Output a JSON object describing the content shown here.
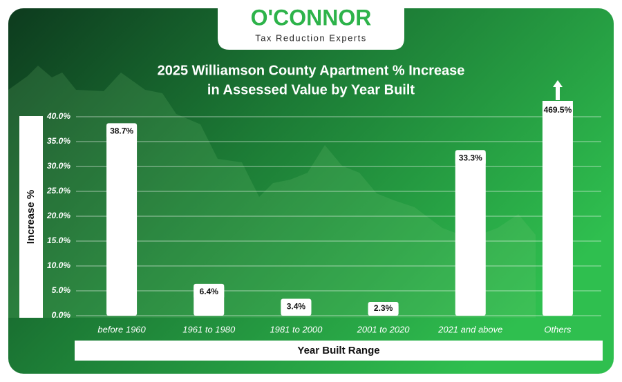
{
  "brand": {
    "name": "O'CONNOR",
    "tagline": "Tax Reduction Experts"
  },
  "chart_data": {
    "type": "bar",
    "title": "2025 Williamson County Apartment % Increase",
    "subtitle": "in Assessed Value by Year Built",
    "x_label": "Year Built Range",
    "y_label": "Increase %",
    "categories": [
      "before 1960",
      "1961 to 1980",
      "1981 to 2000",
      "2001 to 2020",
      "2021 and above",
      "Others"
    ],
    "values": [
      38.7,
      6.4,
      3.4,
      2.3,
      33.3,
      469.5
    ],
    "value_labels": [
      "38.7%",
      "6.4%",
      "3.4%",
      "2.3%",
      "33.3%",
      "469.5%"
    ],
    "color": "#ffffff",
    "ylim": [
      0,
      40
    ],
    "yticks": [
      {
        "value": 0,
        "label": "0.0%"
      },
      {
        "value": 5,
        "label": "5.0%"
      },
      {
        "value": 10,
        "label": "10.0%"
      },
      {
        "value": 15,
        "label": "15.0%"
      },
      {
        "value": 20,
        "label": "20.0%"
      },
      {
        "value": 25,
        "label": "25.0%"
      },
      {
        "value": 30,
        "label": "30.0%"
      },
      {
        "value": 35,
        "label": "35.0%"
      },
      {
        "value": 40,
        "label": "40.0%"
      }
    ],
    "grid": true
  }
}
